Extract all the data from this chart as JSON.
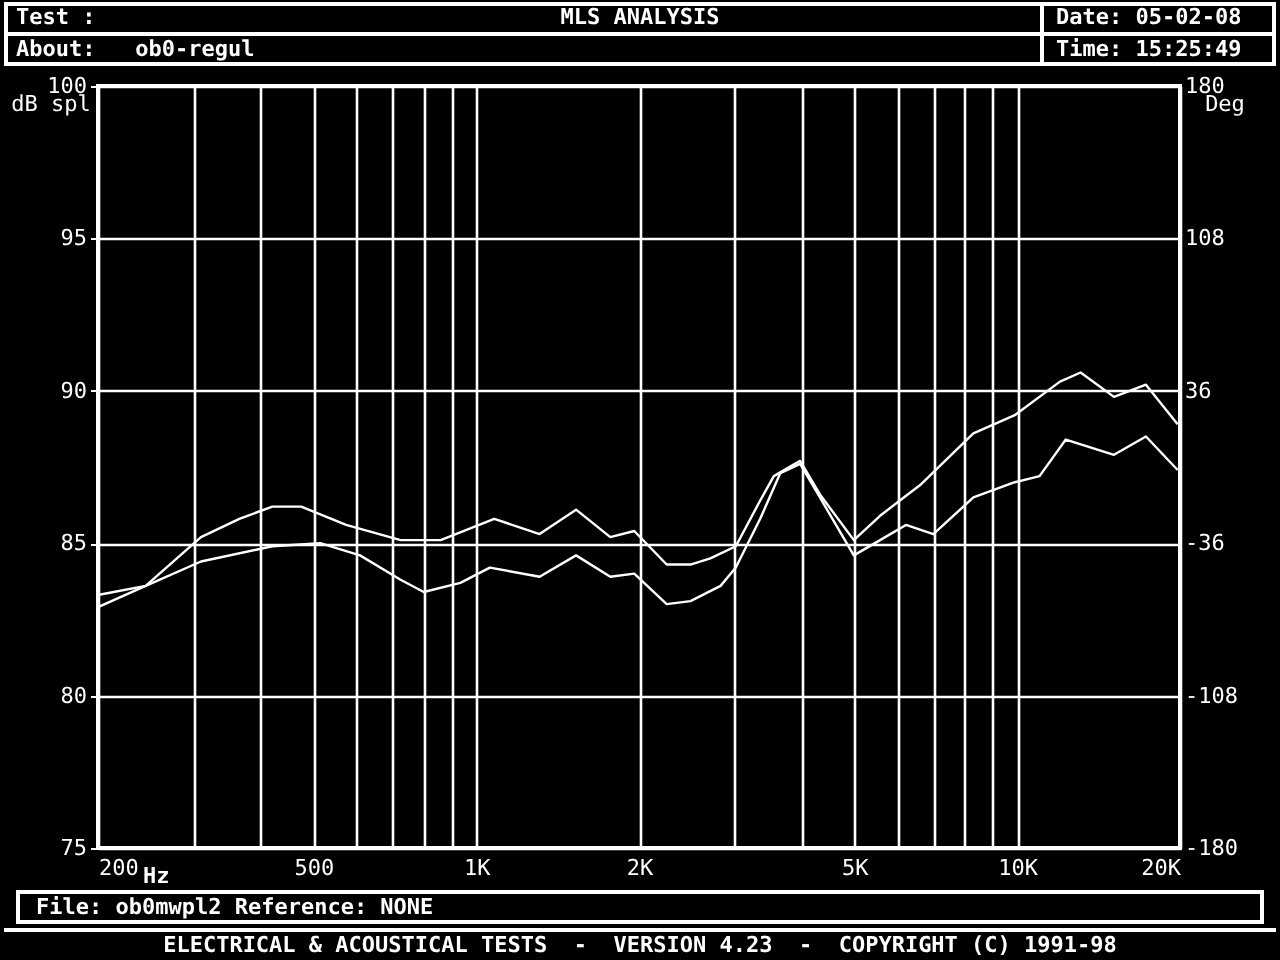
{
  "chart_data": {
    "type": "line",
    "title": "MLS ANALYSIS",
    "annotations": [
      "Test :",
      "About:   ob0-regul",
      "Date: 05-02-08",
      "Time: 15:25:49",
      "File: ob0mwpl2 Reference: NONE",
      "ELECTRICAL & ACOUSTICAL TESTS  -  VERSION 4.23  -  COPYRIGHT (C) 1991-98"
    ],
    "xlabel": "Hz",
    "ylabel": "dB spl",
    "y2label": "Deg",
    "log": "x",
    "xlim": [
      200,
      20000
    ],
    "xticks": [
      200,
      {
        "value": 300,
        "label": null
      },
      {
        "value": 400,
        "label": null
      },
      500,
      {
        "value": 600,
        "label": null
      },
      {
        "value": 700,
        "label": null
      },
      {
        "value": 800,
        "label": null
      },
      {
        "value": 900,
        "label": null
      },
      {
        "value": 1000,
        "label": "1K"
      },
      {
        "value": 2000,
        "label": "2K"
      },
      {
        "value": 3000,
        "label": null
      },
      {
        "value": 4000,
        "label": null
      },
      {
        "value": 5000,
        "label": "5K"
      },
      {
        "value": 6000,
        "label": null
      },
      {
        "value": 7000,
        "label": null
      },
      {
        "value": 8000,
        "label": null
      },
      {
        "value": 9000,
        "label": null
      },
      {
        "value": 10000,
        "label": "10K"
      },
      {
        "value": 20000,
        "label": "20K"
      }
    ],
    "ylim": [
      75,
      100
    ],
    "yticks": [
      75,
      80,
      85,
      90,
      95,
      100
    ],
    "y2lim": [
      -180,
      180
    ],
    "y2ticks": [
      -180,
      -108,
      -36,
      36,
      108,
      180
    ],
    "grid": true,
    "series": [
      {
        "color": "#ffffff",
        "x": [
          200,
          245,
          310,
          365,
          420,
          475,
          575,
          725,
          860,
          1080,
          1310,
          1530,
          1770,
          1960,
          2250,
          2490,
          2710,
          3020,
          3350,
          3550,
          3970,
          4320,
          4990,
          5580,
          6070,
          6610,
          8300,
          9900,
          12000,
          13100,
          15100,
          17300,
          19800
        ],
        "values": [
          82.9,
          83.6,
          85.2,
          85.8,
          86.2,
          86.2,
          85.6,
          85.1,
          85.1,
          85.8,
          85.3,
          86.1,
          85.2,
          85.4,
          84.3,
          84.3,
          84.5,
          84.9,
          86.4,
          87.2,
          87.7,
          86.6,
          85.1,
          85.9,
          86.4,
          86.9,
          88.6,
          89.2,
          90.3,
          90.6,
          89.8,
          90.2,
          88.9
        ]
      },
      {
        "color": "#ffffff",
        "x": [
          200,
          245,
          310,
          420,
          515,
          610,
          725,
          800,
          935,
          1060,
          1310,
          1530,
          1770,
          1960,
          2250,
          2490,
          2830,
          3020,
          3350,
          3650,
          3970,
          4320,
          4990,
          5580,
          6230,
          7000,
          8300,
          9900,
          11000,
          12300,
          15100,
          17300,
          19800
        ],
        "values": [
          83.3,
          83.6,
          84.4,
          84.9,
          85.0,
          84.6,
          83.8,
          83.4,
          83.7,
          84.2,
          83.9,
          84.6,
          83.9,
          84.0,
          83.0,
          83.1,
          83.6,
          84.2,
          85.8,
          87.3,
          87.6,
          86.5,
          84.6,
          85.1,
          85.6,
          85.3,
          86.5,
          87.0,
          87.2,
          88.4,
          87.9,
          88.5,
          87.4
        ]
      }
    ]
  }
}
